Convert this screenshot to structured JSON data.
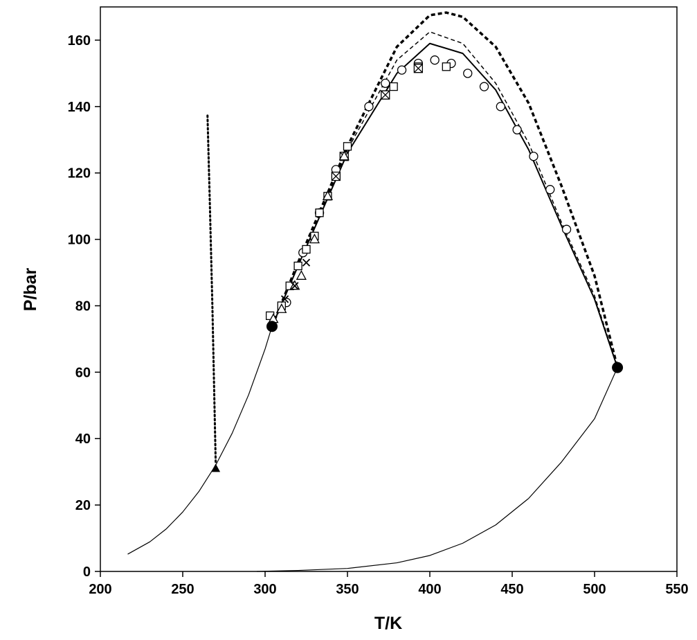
{
  "chart_data": {
    "type": "line",
    "x_label": "T/K",
    "y_label": "P/bar",
    "xlim": [
      200,
      550
    ],
    "xticks": [
      200,
      250,
      300,
      350,
      400,
      450,
      500,
      550
    ],
    "ylim": [
      0,
      170
    ],
    "yticks": [
      0,
      20,
      40,
      60,
      80,
      100,
      120,
      140,
      160
    ],
    "grid": false,
    "series": [
      {
        "style": "solid",
        "color": "#000000",
        "width": 1.2,
        "x": [
          216.6,
          230,
          240,
          250,
          260,
          270,
          280,
          290,
          300,
          304.2
        ],
        "values": [
          5.2,
          8.9,
          12.8,
          17.9,
          24.2,
          32,
          41.6,
          53.2,
          67,
          73.8
        ]
      },
      {
        "style": "solid",
        "color": "#000000",
        "width": 1.2,
        "x": [
          295,
          320,
          350,
          380,
          400,
          420,
          440,
          460,
          480,
          500,
          513.9
        ],
        "values": [
          0,
          0.3,
          0.9,
          2.6,
          4.8,
          8.5,
          14,
          22,
          33,
          46,
          61.4
        ]
      },
      {
        "style": "dotted",
        "color": "#000000",
        "width": 3,
        "x": [
          270,
          268,
          266.5,
          265
        ],
        "values": [
          33,
          80,
          110,
          138
        ]
      },
      {
        "style": "solid",
        "color": "#000000",
        "width": 2,
        "x": [
          304.2,
          320,
          350,
          380,
          400,
          420,
          440,
          460,
          480,
          500,
          513.9
        ],
        "values": [
          73.8,
          92,
          126,
          150,
          159,
          156,
          145,
          127,
          104,
          82,
          61.4
        ]
      },
      {
        "style": "dashed",
        "color": "#000000",
        "width": 1.5,
        "x": [
          304.2,
          320,
          350,
          380,
          400,
          420,
          440,
          460,
          480,
          500,
          513.9
        ],
        "values": [
          73.8,
          92,
          127,
          154,
          162.5,
          159,
          147,
          129,
          105,
          83,
          61.4
        ]
      },
      {
        "style": "dashed",
        "color": "#000000",
        "width": 3.5,
        "x": [
          304.2,
          320,
          350,
          380,
          400,
          410,
          420,
          440,
          460,
          480,
          500,
          513.9
        ],
        "values": [
          73.8,
          93,
          128,
          158,
          167.5,
          168.3,
          167,
          158,
          141,
          116,
          89,
          61.4
        ]
      },
      {
        "style": "markers",
        "marker": "circle",
        "color": "#000000",
        "x": [
          313,
          323,
          333,
          343,
          363,
          373,
          383,
          393,
          403,
          413,
          423,
          433,
          443,
          453,
          463,
          473,
          483
        ],
        "values": [
          81,
          96,
          108,
          121,
          140,
          147,
          151,
          153,
          154,
          153,
          150,
          146,
          140,
          133,
          125,
          115,
          103
        ]
      },
      {
        "style": "markers",
        "marker": "square",
        "color": "#000000",
        "x": [
          303,
          310,
          315,
          320,
          325,
          330,
          333,
          338,
          343,
          350,
          378,
          393,
          410
        ],
        "values": [
          77,
          80,
          86,
          92,
          97,
          101,
          108,
          113,
          119,
          128,
          146,
          152,
          152
        ]
      },
      {
        "style": "markers",
        "marker": "crossed-square",
        "color": "#000000",
        "x": [
          343,
          348,
          373,
          393
        ],
        "values": [
          119,
          125,
          143.5,
          151.5
        ]
      },
      {
        "style": "markers",
        "marker": "triangle",
        "color": "#000000",
        "x": [
          305,
          310,
          318,
          322,
          330,
          338,
          348
        ],
        "values": [
          76,
          79,
          86,
          89,
          100,
          113,
          125
        ]
      },
      {
        "style": "markers",
        "marker": "cross",
        "color": "#000000",
        "x": [
          312,
          318,
          325
        ],
        "values": [
          82,
          86,
          93
        ]
      },
      {
        "style": "markers",
        "marker": "filled-circle",
        "color": "#000000",
        "x": [
          304.2,
          513.9
        ],
        "values": [
          73.8,
          61.4
        ]
      },
      {
        "style": "markers",
        "marker": "filled-triangle",
        "color": "#000000",
        "x": [
          270
        ],
        "values": [
          31
        ]
      }
    ]
  }
}
